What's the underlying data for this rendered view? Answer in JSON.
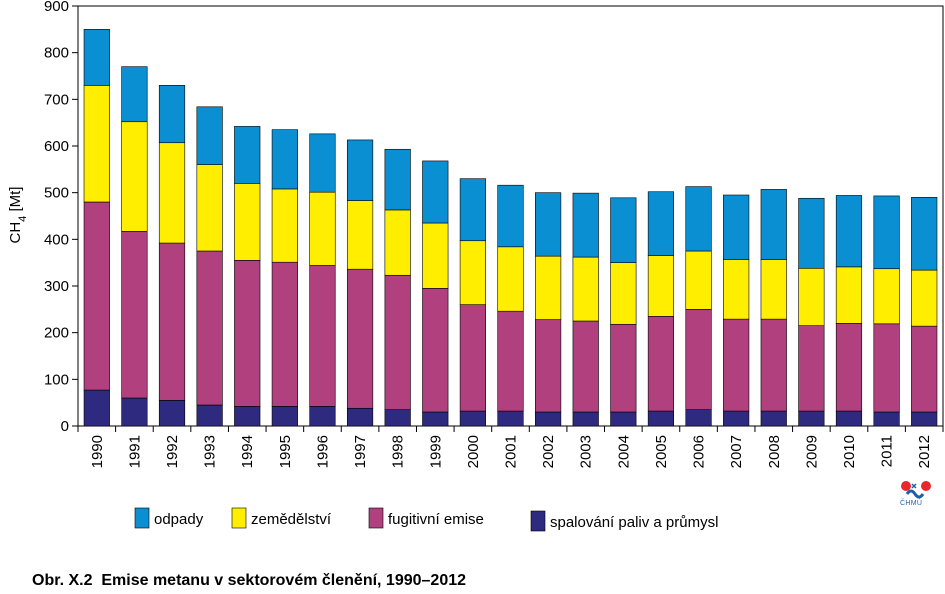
{
  "chart_data": {
    "type": "bar",
    "stacked": true,
    "categories": [
      "1990",
      "1991",
      "1992",
      "1993",
      "1994",
      "1995",
      "1996",
      "1997",
      "1998",
      "1999",
      "2000",
      "2001",
      "2002",
      "2003",
      "2004",
      "2005",
      "2006",
      "2007",
      "2008",
      "2009",
      "2010",
      "2011",
      "2012"
    ],
    "series": [
      {
        "name": "spalování paliv a průmysl",
        "color": "#2e2a80",
        "values": [
          77,
          60,
          55,
          45,
          42,
          42,
          42,
          38,
          35,
          30,
          32,
          32,
          30,
          30,
          30,
          32,
          35,
          32,
          32,
          32,
          32,
          30,
          30
        ]
      },
      {
        "name": "fugitivní emise",
        "color": "#b0407e",
        "values": [
          403,
          357,
          337,
          330,
          313,
          309,
          302,
          298,
          288,
          265,
          228,
          214,
          198,
          195,
          188,
          203,
          215,
          197,
          197,
          183,
          188,
          189,
          184
        ]
      },
      {
        "name": "zemědělství",
        "color": "#ffee00",
        "values": [
          250,
          235,
          215,
          185,
          165,
          157,
          157,
          147,
          140,
          140,
          137,
          138,
          136,
          137,
          132,
          130,
          125,
          128,
          128,
          123,
          121,
          118,
          120
        ]
      },
      {
        "name": "odpady",
        "color": "#0a8fd2",
        "values": [
          120,
          118,
          123,
          124,
          122,
          127,
          125,
          130,
          130,
          133,
          133,
          132,
          136,
          137,
          139,
          137,
          138,
          138,
          150,
          150,
          153,
          156,
          156
        ]
      }
    ],
    "legend_order": [
      "odpady",
      "zemědělství",
      "fugitivní emise",
      "spalování paliv a průmysl"
    ],
    "ylabel_main": "CH",
    "ylabel_sub": "4",
    "ylabel_unit": " [Mt]",
    "ylim": [
      0,
      900
    ],
    "yticks": [
      0,
      100,
      200,
      300,
      400,
      500,
      600,
      700,
      800,
      900
    ],
    "grid": false,
    "legend_position": "bottom"
  },
  "caption": "Obr. X.2  Emise metanu v sektorovém členění, 1990–2012",
  "logo": {
    "text": "ČHMÚ",
    "icon": "chmu-logo-icon"
  }
}
